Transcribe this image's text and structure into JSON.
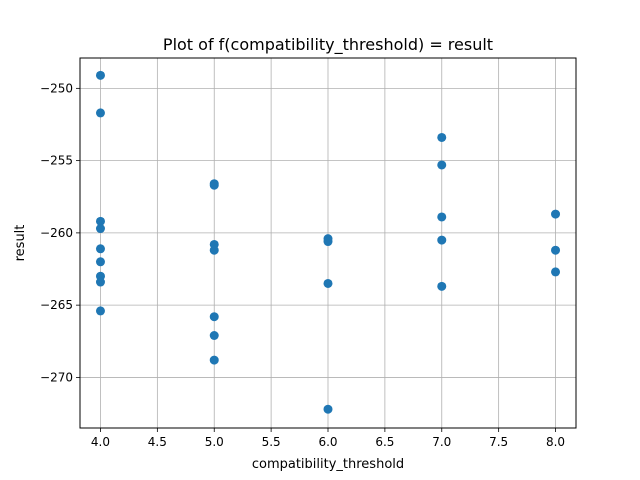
{
  "chart_data": {
    "type": "scatter",
    "title": "Plot of f(compatibility_threshold) = result",
    "xlabel": "compatibility_threshold",
    "ylabel": "result",
    "xlim": [
      3.82,
      8.18
    ],
    "ylim": [
      -273.5,
      -247.9
    ],
    "xticks": [
      4.0,
      4.5,
      5.0,
      5.5,
      6.0,
      6.5,
      7.0,
      7.5,
      8.0
    ],
    "xtick_labels": [
      "4.0",
      "4.5",
      "5.0",
      "5.5",
      "6.0",
      "6.5",
      "7.0",
      "7.5",
      "8.0"
    ],
    "yticks": [
      -250,
      -255,
      -260,
      -265,
      -270
    ],
    "ytick_labels": [
      "−250",
      "−255",
      "−260",
      "−265",
      "−270"
    ],
    "grid": true,
    "marker_color": "#1f77b4",
    "points": [
      {
        "x": 4,
        "y": -249.1
      },
      {
        "x": 4,
        "y": -251.7
      },
      {
        "x": 4,
        "y": -259.2
      },
      {
        "x": 4,
        "y": -259.7
      },
      {
        "x": 4,
        "y": -261.1
      },
      {
        "x": 4,
        "y": -262.0
      },
      {
        "x": 4,
        "y": -263.0
      },
      {
        "x": 4,
        "y": -263.4
      },
      {
        "x": 4,
        "y": -265.4
      },
      {
        "x": 5,
        "y": -256.6
      },
      {
        "x": 5,
        "y": -256.7
      },
      {
        "x": 5,
        "y": -260.8
      },
      {
        "x": 5,
        "y": -261.2
      },
      {
        "x": 5,
        "y": -265.8
      },
      {
        "x": 5,
        "y": -267.1
      },
      {
        "x": 5,
        "y": -268.8
      },
      {
        "x": 6,
        "y": -260.4
      },
      {
        "x": 6,
        "y": -260.6
      },
      {
        "x": 6,
        "y": -263.5
      },
      {
        "x": 6,
        "y": -272.2
      },
      {
        "x": 7,
        "y": -253.4
      },
      {
        "x": 7,
        "y": -255.3
      },
      {
        "x": 7,
        "y": -258.9
      },
      {
        "x": 7,
        "y": -260.5
      },
      {
        "x": 7,
        "y": -263.7
      },
      {
        "x": 8,
        "y": -258.7
      },
      {
        "x": 8,
        "y": -261.2
      },
      {
        "x": 8,
        "y": -262.7
      }
    ]
  }
}
